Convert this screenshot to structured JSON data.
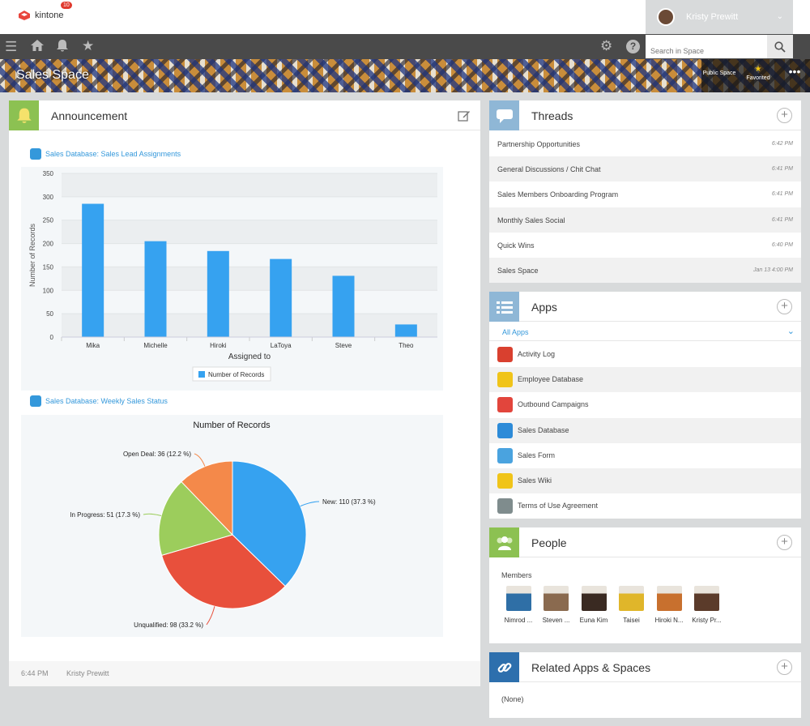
{
  "topbar": {
    "logo_text": "kintone",
    "user_name": "Kristy Prewitt"
  },
  "nav": {
    "notification_count": "10",
    "search_placeholder": "Search in Space"
  },
  "banner": {
    "title": "Sales Space",
    "public_label": "Public Space",
    "favorited_label": "Favorited"
  },
  "announcement": {
    "title": "Announcement",
    "chart1_link": "Sales Database: Sales Lead Assignments",
    "chart2_link": "Sales Database: Weekly Sales Status",
    "footer_time": "6:44 PM",
    "footer_author": "Kristy Prewitt"
  },
  "chart_data": [
    {
      "type": "bar",
      "categories": [
        "Mika",
        "Michelle",
        "Hiroki",
        "LaToya",
        "Steve",
        "Theo"
      ],
      "values": [
        285,
        205,
        184,
        167,
        131,
        27
      ],
      "xlabel": "Assigned to",
      "ylabel": "Number of Records",
      "ylim": [
        0,
        350
      ],
      "yticks": [
        0,
        50,
        100,
        150,
        200,
        250,
        300,
        350
      ],
      "legend": "Number of Records",
      "legend_position": "bottom",
      "color": "#36a2f0",
      "grid": true
    },
    {
      "type": "pie",
      "title": "Number of Records",
      "slices": [
        {
          "label": "New",
          "value": 110,
          "percent": 37.3,
          "color": "#36a2f0",
          "text": "New: 110 (37.3 %)"
        },
        {
          "label": "Unqualified",
          "value": 98,
          "percent": 33.2,
          "color": "#e8503c",
          "text": "Unqualified: 98 (33.2 %)"
        },
        {
          "label": "In Progress",
          "value": 51,
          "percent": 17.3,
          "color": "#9ccd5c",
          "text": "In Progress: 51 (17.3 %)"
        },
        {
          "label": "Open Deal",
          "value": 36,
          "percent": 12.2,
          "color": "#f4894a",
          "text": "Open Deal: 36 (12.2 %)"
        }
      ]
    }
  ],
  "threads": {
    "title": "Threads",
    "items": [
      {
        "name": "Partnership Opportunities",
        "time": "6:42 PM"
      },
      {
        "name": "General Discussions / Chit Chat",
        "time": "6:41 PM"
      },
      {
        "name": "Sales Members Onboarding Program",
        "time": "6:41 PM"
      },
      {
        "name": "Monthly Sales Social",
        "time": "6:41 PM"
      },
      {
        "name": "Quick Wins",
        "time": "6:40 PM"
      },
      {
        "name": "Sales Space",
        "time": "Jan 13 4:00 PM"
      }
    ]
  },
  "apps": {
    "title": "Apps",
    "filter": "All Apps",
    "items": [
      {
        "name": "Activity Log",
        "color": "#d9402f"
      },
      {
        "name": "Employee Database",
        "color": "#f0c419"
      },
      {
        "name": "Outbound Campaigns",
        "color": "#e2453c"
      },
      {
        "name": "Sales Database",
        "color": "#2d8bd8"
      },
      {
        "name": "Sales Form",
        "color": "#4aa3df"
      },
      {
        "name": "Sales Wiki",
        "color": "#f0c419"
      },
      {
        "name": "Terms of Use Agreement",
        "color": "#7f8c8d"
      }
    ]
  },
  "people": {
    "title": "People",
    "members_label": "Members",
    "members": [
      {
        "name": "Nimrod ...",
        "color": "#2f6fa6"
      },
      {
        "name": "Steven ...",
        "color": "#8a6a4f"
      },
      {
        "name": "Euna Kim",
        "color": "#3a2a22"
      },
      {
        "name": "Taisei",
        "color": "#e0b62a"
      },
      {
        "name": "Hiroki N...",
        "color": "#c8702e"
      },
      {
        "name": "Kristy Pr...",
        "color": "#5b3b2a"
      }
    ]
  },
  "related": {
    "title": "Related Apps & Spaces",
    "empty_text": "(None)"
  }
}
